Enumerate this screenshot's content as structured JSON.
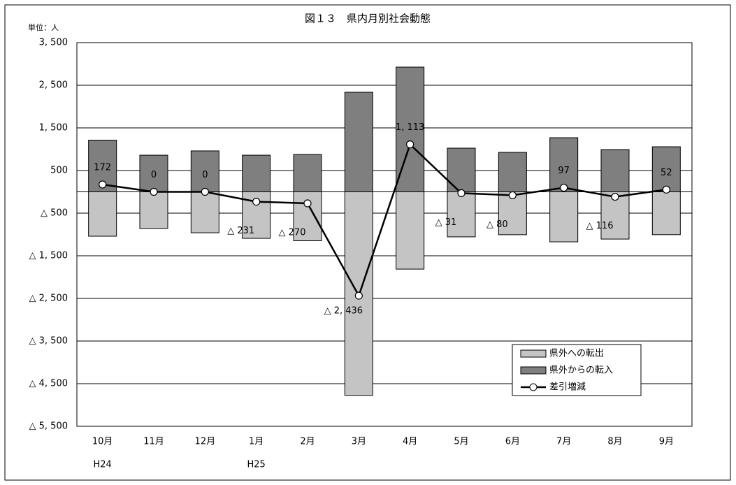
{
  "chart_data": {
    "type": "bar",
    "title": "図１３　県内月別社会動態",
    "unit_label": "単位：人",
    "categories": [
      "10月",
      "11月",
      "12月",
      "1月",
      "2月",
      "3月",
      "4月",
      "5月",
      "6月",
      "7月",
      "8月",
      "9月"
    ],
    "category_sublabels": [
      "H24",
      null,
      null,
      "H25",
      null,
      null,
      null,
      null,
      null,
      null,
      null,
      null
    ],
    "ylim": [
      -5500,
      3500
    ],
    "yticks": [
      {
        "value": 3500,
        "label": "3, 500"
      },
      {
        "value": 2500,
        "label": "2, 500"
      },
      {
        "value": 1500,
        "label": "1, 500"
      },
      500,
      {
        "value": -500,
        "label": "△ 500"
      },
      {
        "value": -1500,
        "label": "△ 1, 500"
      },
      {
        "value": -2500,
        "label": "△ 2, 500"
      },
      {
        "value": -3500,
        "label": "△ 3, 500"
      },
      {
        "value": -4500,
        "label": "△ 4, 500"
      },
      {
        "value": -5500,
        "label": "△ 5, 500"
      }
    ],
    "grid": true,
    "legend": "lower right",
    "series": [
      {
        "name": "県外への転出",
        "type": "bar",
        "color": "#c4c4c4",
        "values": [
          -1041,
          -860,
          -960,
          -1091,
          -1147,
          -4772,
          -1813,
          -1056,
          -1006,
          -1173,
          -1108,
          -1005
        ]
      },
      {
        "name": "県外からの転入",
        "type": "bar",
        "color": "#7f7f7f",
        "values": [
          1213,
          860,
          960,
          860,
          877,
          2336,
          2926,
          1025,
          926,
          1270,
          992,
          1057
        ]
      },
      {
        "name": "差引増減",
        "type": "line",
        "color": "#000000",
        "values": [
          172,
          0,
          0,
          -231,
          -270,
          -2436,
          1113,
          -31,
          -80,
          97,
          -116,
          52
        ],
        "value_labels": [
          "172",
          "0",
          "0",
          "△ 231",
          "△ 270",
          "△ 2, 436",
          "1, 113",
          "△ 31",
          "△ 80",
          "97",
          "△ 116",
          "52"
        ]
      }
    ]
  }
}
